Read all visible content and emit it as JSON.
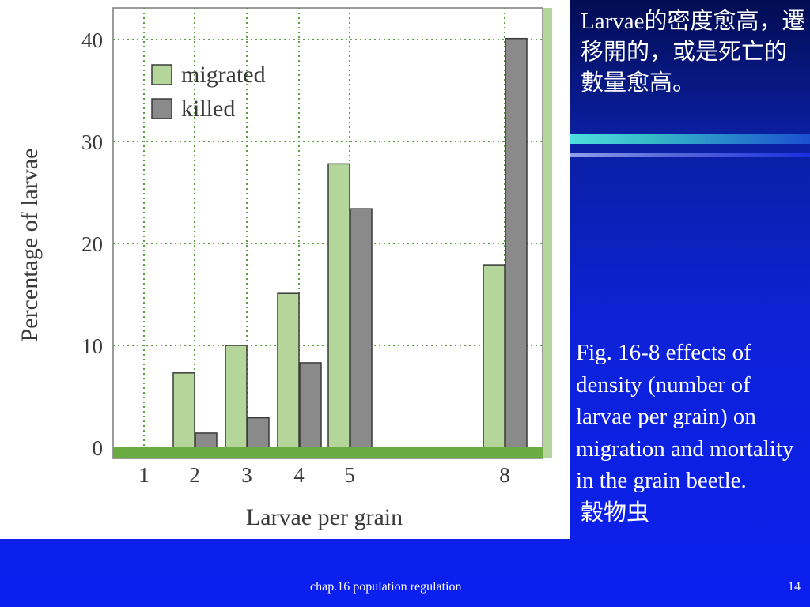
{
  "slide": {
    "heading": "Larvae的密度愈高，遷移開的，或是死亡的數量愈高。",
    "caption_en": "Fig. 16-8 effects of density (number of larvae per grain) on migration and mortality in the grain beetle.",
    "caption_cn": "穀物虫",
    "footer_title": "chap.16 population regulation",
    "page_number": "14"
  },
  "colors": {
    "migrated": "#b5d69a",
    "killed": "#8a8a8a",
    "baseline": "#6aab44",
    "grid": "#5aa043",
    "background_blue": "#0b1ff0"
  },
  "chart_data": {
    "type": "bar",
    "title": "",
    "xlabel": "Larvae per grain",
    "ylabel": "Percentage of larvae",
    "x_ticks": [
      "1",
      "2",
      "3",
      "4",
      "5",
      "8"
    ],
    "y_ticks": [
      "0",
      "10",
      "20",
      "30",
      "40"
    ],
    "ylim": [
      0,
      40
    ],
    "grid": true,
    "legend_position": "top-left",
    "series": [
      {
        "name": "migrated",
        "color": "#b5d69a",
        "values": [
          0,
          7.3,
          10.0,
          15.1,
          27.8,
          17.9
        ]
      },
      {
        "name": "killed",
        "color": "#8a8a8a",
        "values": [
          0,
          1.4,
          2.9,
          8.3,
          23.4,
          40.1
        ]
      }
    ]
  }
}
